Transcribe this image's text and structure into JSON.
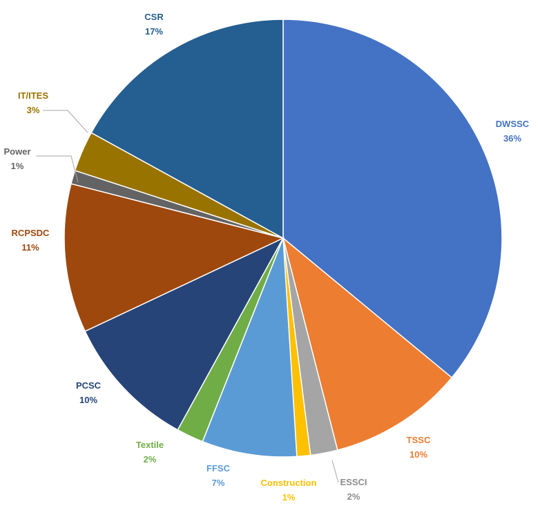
{
  "chart_data": {
    "type": "pie",
    "title": "",
    "slices": [
      {
        "label": "DWSSC",
        "value": 36,
        "pct_label": "36%",
        "color": "#4472C4",
        "label_color": "#4472C4"
      },
      {
        "label": "TSSC",
        "value": 10,
        "pct_label": "10%",
        "color": "#ED7D31",
        "label_color": "#ED7D31"
      },
      {
        "label": "ESSCI",
        "value": 2,
        "pct_label": "2%",
        "color": "#A5A5A5",
        "label_color": "#8C8C8C"
      },
      {
        "label": "Construction",
        "value": 1,
        "pct_label": "1%",
        "color": "#FFC000",
        "label_color": "#FFC000"
      },
      {
        "label": "FFSC",
        "value": 7,
        "pct_label": "7%",
        "color": "#5B9BD5",
        "label_color": "#5B9BD5"
      },
      {
        "label": "Textile",
        "value": 2,
        "pct_label": "2%",
        "color": "#70AD47",
        "label_color": "#70AD47"
      },
      {
        "label": "PCSC",
        "value": 10,
        "pct_label": "10%",
        "color": "#264478",
        "label_color": "#264478"
      },
      {
        "label": "RCPSDC",
        "value": 11,
        "pct_label": "11%",
        "color": "#9E480E",
        "label_color": "#9E480E"
      },
      {
        "label": "Power",
        "value": 1,
        "pct_label": "1%",
        "color": "#636363",
        "label_color": "#636363"
      },
      {
        "label": "IT/ITES",
        "value": 3,
        "pct_label": "3%",
        "color": "#997300",
        "label_color": "#997300"
      },
      {
        "label": "CSR",
        "value": 17,
        "pct_label": "17%",
        "color": "#255E91",
        "label_color": "#255E91"
      }
    ]
  }
}
